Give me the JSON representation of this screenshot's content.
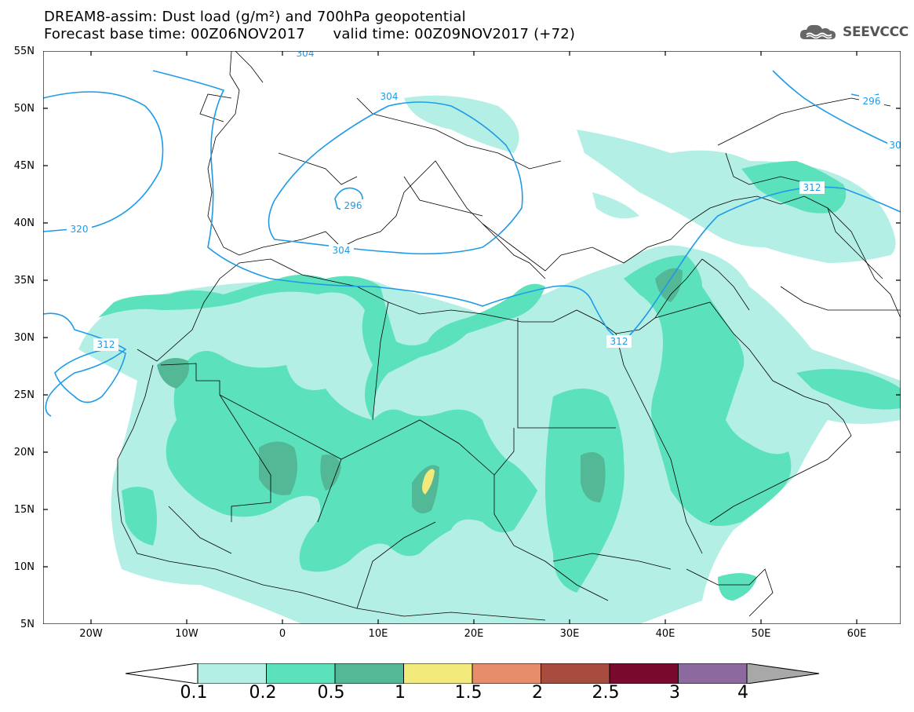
{
  "header": {
    "title_line_1": "DREAM8-assim: Dust load (g/m²) and 700hPa geopotential",
    "title_line_2": "Forecast base time: 00Z06NOV2017      valid time: 00Z09NOV2017 (+72)",
    "brand": "SEEVCCC"
  },
  "map": {
    "lat_labels": [
      "55N",
      "50N",
      "45N",
      "40N",
      "35N",
      "30N",
      "25N",
      "20N",
      "15N",
      "10N",
      "5N"
    ],
    "lon_labels": [
      "20W",
      "10W",
      "0",
      "10E",
      "20E",
      "30E",
      "40E",
      "50E",
      "60E"
    ],
    "contour_labels": [
      "304",
      "304",
      "296",
      "304",
      "320",
      "312",
      "312",
      "312",
      "296",
      "30"
    ]
  },
  "colorbar": {
    "labels": [
      "0.1",
      "0.2",
      "0.5",
      "1",
      "1.5",
      "2",
      "2.5",
      "3",
      "4"
    ],
    "colors": [
      "#b4efe6",
      "#5ce1bd",
      "#52b896",
      "#f2ea7a",
      "#e88d6a",
      "#a94c40",
      "#7a0a2d",
      "#8c6aa0"
    ],
    "low_color": "#ffffff",
    "high_color": "#a8a8a8"
  },
  "legend_colors": {
    "contour": "#1e9be8",
    "border": "#000000"
  }
}
